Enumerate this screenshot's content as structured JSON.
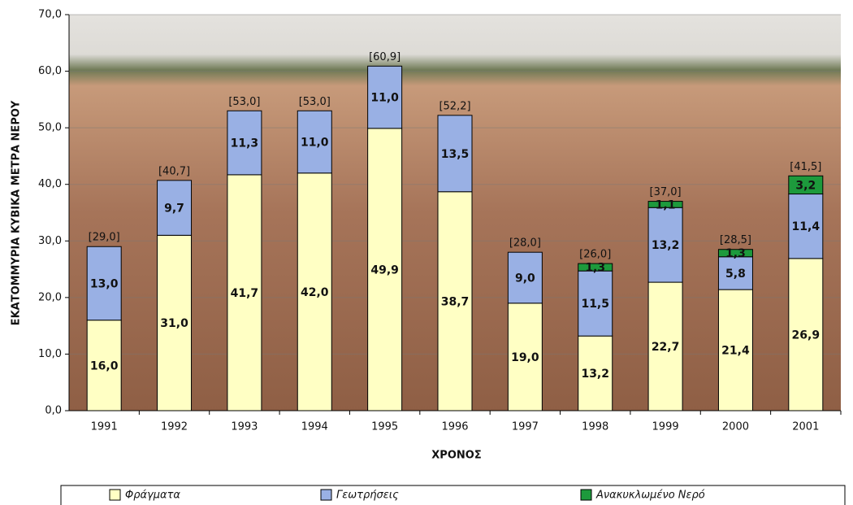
{
  "chart_data": {
    "type": "stacked_bar",
    "x_label": "ΧΡΟΝΟΣ",
    "y_label": "ΕΚΑΤΟΜΜΥΡΙΑ ΚΥΒΙΚΑ ΜΕΤΡΑ ΝΕΡΟΥ",
    "categories": [
      "1991",
      "1992",
      "1993",
      "1994",
      "1995",
      "1996",
      "1997",
      "1998",
      "1999",
      "2000",
      "2001"
    ],
    "series": [
      {
        "name": "Φράγματα",
        "color": "#ffffc4",
        "values": [
          16.0,
          31.0,
          41.7,
          42.0,
          49.9,
          38.7,
          19.0,
          13.2,
          22.7,
          21.4,
          26.9
        ],
        "value_labels": [
          "16,0",
          "31,0",
          "41,7",
          "42,0",
          "49,9",
          "38,7",
          "19,0",
          "13,2",
          "22,7",
          "21,4",
          "26,9"
        ]
      },
      {
        "name": "Γεωτρήσεις",
        "color": "#99b0e4",
        "values": [
          13.0,
          9.7,
          11.3,
          11.0,
          11.0,
          13.5,
          9.0,
          11.5,
          13.2,
          5.8,
          11.4
        ],
        "value_labels": [
          "13,0",
          "9,7",
          "11,3",
          "11,0",
          "11,0",
          "13,5",
          "9,0",
          "11,5",
          "13,2",
          "5,8",
          "11,4"
        ]
      },
      {
        "name": "Ανακυκλωμένο Νερό",
        "color": "#1d9a3c",
        "values": [
          null,
          null,
          null,
          null,
          null,
          null,
          null,
          1.3,
          1.1,
          1.3,
          3.2
        ],
        "value_labels": [
          null,
          null,
          null,
          null,
          null,
          null,
          null,
          "1,3",
          "1,1",
          "1,3",
          "3,2"
        ]
      }
    ],
    "totals": [
      29.0,
      40.7,
      53.0,
      53.0,
      60.9,
      52.2,
      28.0,
      26.0,
      37.0,
      28.5,
      41.5
    ],
    "total_labels": [
      "[29,0]",
      "[40,7]",
      "[53,0]",
      "[53,0]",
      "[60,9]",
      "[52,2]",
      "[28,0]",
      "[26,0]",
      "[37,0]",
      "[28,5]",
      "[41,5]"
    ],
    "ylim": [
      0,
      70
    ],
    "yticks": [
      {
        "value": 0,
        "label": "0,0"
      },
      {
        "value": 10,
        "label": "10,0"
      },
      {
        "value": 20,
        "label": "20,0"
      },
      {
        "value": 30,
        "label": "30,0"
      },
      {
        "value": 40,
        "label": "40,0"
      },
      {
        "value": 50,
        "label": "50,0"
      },
      {
        "value": 60,
        "label": "60,0"
      },
      {
        "value": 70,
        "label": "70,0"
      }
    ],
    "grid": true,
    "legend": "bottom"
  }
}
